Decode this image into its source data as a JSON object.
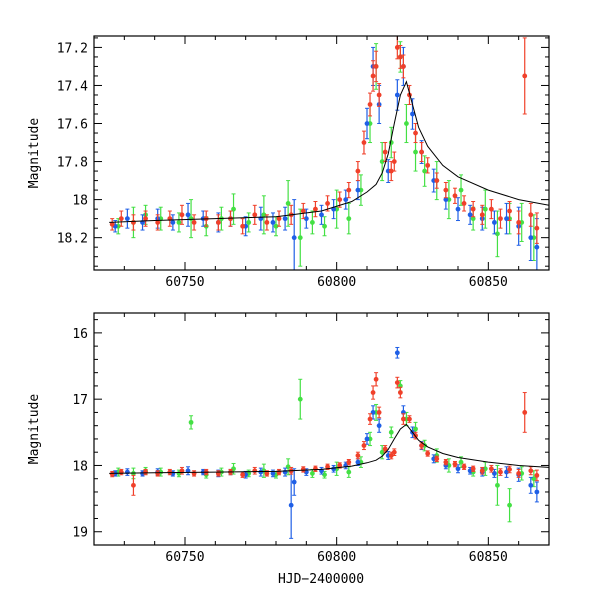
{
  "figure": {
    "xlabel": "HJD−2400000",
    "colors": {
      "green": "#44e044",
      "blue": "#1f5fe6",
      "red": "#f0402a",
      "model": "#000000"
    }
  },
  "chart_data": [
    {
      "type": "scatter",
      "panel": "top",
      "title": "",
      "xlabel": "",
      "ylabel": "Magnitude",
      "xlim": [
        60720,
        60870
      ],
      "ylim": [
        18.37,
        17.14
      ],
      "y_inverted": true,
      "xticks": [
        60750,
        60800,
        60850
      ],
      "xtick_labels": [
        "60750",
        "60800",
        "60850"
      ],
      "yticks": [
        17.2,
        17.4,
        17.6,
        17.8,
        18.0,
        18.2
      ],
      "ytick_labels": [
        "17.2",
        "17.4",
        "17.6",
        "17.8",
        "18",
        "18.2"
      ],
      "grid": false,
      "legend": "none",
      "series": [
        {
          "color": "#44e044",
          "x": [
            60728,
            60733,
            60737,
            60742,
            60748,
            60752,
            60757,
            60762,
            60766,
            60771,
            60776,
            60780,
            60784,
            60788,
            60792,
            60796,
            60800,
            60804,
            60808,
            60811,
            60813,
            60815,
            60818,
            60821,
            60823,
            60826,
            60829,
            60833,
            60837,
            60841,
            60845,
            60849,
            60853,
            60857,
            60861,
            60865
          ],
          "y": [
            18.14,
            18.12,
            18.08,
            18.1,
            18.12,
            18.1,
            18.14,
            18.1,
            18.05,
            18.12,
            18.08,
            18.14,
            18.02,
            18.2,
            18.12,
            18.14,
            18.05,
            18.1,
            17.95,
            17.6,
            17.3,
            17.8,
            17.7,
            17.25,
            17.6,
            17.75,
            17.85,
            17.9,
            18.0,
            17.95,
            18.1,
            18.05,
            18.18,
            18.1,
            18.12,
            18.2
          ],
          "err": [
            0.04,
            0.08,
            0.05,
            0.06,
            0.05,
            0.1,
            0.05,
            0.06,
            0.08,
            0.05,
            0.1,
            0.05,
            0.12,
            0.15,
            0.06,
            0.05,
            0.1,
            0.08,
            0.08,
            0.1,
            0.12,
            0.1,
            0.08,
            0.08,
            0.1,
            0.1,
            0.08,
            0.1,
            0.1,
            0.08,
            0.06,
            0.1,
            0.12,
            0.08,
            0.1,
            0.12
          ]
        },
        {
          "color": "#1f5fe6",
          "x": [
            60727,
            60731,
            60736,
            60741,
            60746,
            60751,
            60756,
            60761,
            60765,
            60770,
            60775,
            60779,
            60783,
            60786,
            60790,
            60795,
            60799,
            60803,
            60807,
            60810,
            60812,
            60814,
            60817,
            60820,
            60822,
            60825,
            60828,
            60832,
            60836,
            60840,
            60844,
            60848,
            60852,
            60856,
            60860,
            60864,
            60866
          ],
          "y": [
            18.14,
            18.1,
            18.12,
            18.1,
            18.12,
            18.08,
            18.1,
            18.12,
            18.1,
            18.14,
            18.1,
            18.12,
            18.1,
            18.2,
            18.1,
            18.08,
            18.05,
            18.0,
            17.95,
            17.6,
            17.3,
            17.5,
            17.85,
            17.45,
            17.3,
            17.55,
            17.75,
            17.9,
            18.0,
            18.05,
            18.08,
            18.1,
            18.12,
            18.1,
            18.14,
            18.2,
            18.25
          ],
          "err": [
            0.03,
            0.05,
            0.04,
            0.05,
            0.04,
            0.06,
            0.04,
            0.05,
            0.04,
            0.05,
            0.06,
            0.05,
            0.06,
            0.2,
            0.05,
            0.05,
            0.05,
            0.05,
            0.05,
            0.08,
            0.1,
            0.1,
            0.06,
            0.08,
            0.1,
            0.08,
            0.06,
            0.06,
            0.05,
            0.06,
            0.05,
            0.06,
            0.06,
            0.08,
            0.1,
            0.12,
            0.15
          ]
        },
        {
          "color": "#f0402a",
          "x": [
            60726,
            60729,
            60733,
            60737,
            60741,
            60745,
            60749,
            60753,
            60757,
            60761,
            60765,
            60769,
            60773,
            60777,
            60781,
            60785,
            60789,
            60793,
            60797,
            60801,
            60804,
            60807,
            60809,
            60811,
            60812,
            60813,
            60814,
            60816,
            60818,
            60819,
            60820,
            60821,
            60822,
            60824,
            60826,
            60828,
            60830,
            60833,
            60836,
            60839,
            60842,
            60845,
            60848,
            60851,
            60854,
            60857,
            60860,
            60862,
            60864,
            60866
          ],
          "y": [
            18.13,
            18.1,
            18.12,
            18.1,
            18.12,
            18.1,
            18.08,
            18.12,
            18.1,
            18.12,
            18.1,
            18.14,
            18.08,
            18.12,
            18.1,
            18.08,
            18.06,
            18.05,
            18.02,
            18.0,
            17.95,
            17.85,
            17.7,
            17.5,
            17.35,
            17.3,
            17.45,
            17.75,
            17.85,
            17.8,
            17.2,
            17.25,
            17.3,
            17.45,
            17.65,
            17.75,
            17.82,
            17.9,
            17.95,
            17.98,
            18.02,
            18.05,
            18.08,
            18.05,
            18.1,
            18.06,
            18.12,
            17.35,
            18.08,
            18.15
          ],
          "err": [
            0.03,
            0.04,
            0.04,
            0.04,
            0.04,
            0.04,
            0.05,
            0.04,
            0.04,
            0.04,
            0.04,
            0.04,
            0.05,
            0.04,
            0.04,
            0.05,
            0.04,
            0.04,
            0.04,
            0.04,
            0.04,
            0.05,
            0.06,
            0.06,
            0.08,
            0.08,
            0.06,
            0.05,
            0.05,
            0.05,
            0.06,
            0.06,
            0.06,
            0.05,
            0.05,
            0.05,
            0.04,
            0.04,
            0.04,
            0.04,
            0.04,
            0.04,
            0.05,
            0.05,
            0.05,
            0.05,
            0.06,
            0.2,
            0.06,
            0.08
          ]
        }
      ],
      "model": {
        "x": [
          60725,
          60740,
          60760,
          60780,
          60795,
          60805,
          60810,
          60813,
          60815,
          60817,
          60819,
          60821,
          60823,
          60825,
          60827,
          60830,
          60835,
          60840,
          60850,
          60860,
          60870
        ],
        "y": [
          18.12,
          18.11,
          18.1,
          18.09,
          18.06,
          18.01,
          17.96,
          17.92,
          17.86,
          17.76,
          17.6,
          17.45,
          17.38,
          17.5,
          17.62,
          17.72,
          17.82,
          17.88,
          17.95,
          18.0,
          18.03
        ]
      }
    },
    {
      "type": "scatter",
      "panel": "bottom",
      "title": "",
      "xlabel": "HJD−2400000",
      "ylabel": "Magnitude",
      "xlim": [
        60720,
        60870
      ],
      "ylim": [
        19.2,
        15.7
      ],
      "y_inverted": true,
      "xticks": [
        60750,
        60800,
        60850
      ],
      "xtick_labels": [
        "60750",
        "60800",
        "60850"
      ],
      "yticks": [
        16,
        17,
        18,
        19
      ],
      "ytick_labels": [
        "16",
        "17",
        "18",
        "19"
      ],
      "grid": false,
      "legend": "none",
      "series": [
        {
          "color": "#44e044",
          "x": [
            60728,
            60733,
            60737,
            60742,
            60748,
            60752,
            60757,
            60762,
            60766,
            60771,
            60776,
            60780,
            60784,
            60788,
            60792,
            60796,
            60800,
            60804,
            60808,
            60811,
            60813,
            60815,
            60818,
            60821,
            60823,
            60826,
            60829,
            60833,
            60837,
            60841,
            60845,
            60849,
            60853,
            60857,
            60861,
            60865
          ],
          "y": [
            18.1,
            18.12,
            18.08,
            18.1,
            18.12,
            17.35,
            18.14,
            18.1,
            18.05,
            18.12,
            18.08,
            18.14,
            18.02,
            17.0,
            18.12,
            18.14,
            18.05,
            18.1,
            17.95,
            17.6,
            17.2,
            17.8,
            17.5,
            16.8,
            17.3,
            17.45,
            17.7,
            17.85,
            18.0,
            17.95,
            18.1,
            18.05,
            18.3,
            18.6,
            18.12,
            18.2
          ],
          "err": [
            0.06,
            0.08,
            0.05,
            0.06,
            0.05,
            0.1,
            0.05,
            0.06,
            0.08,
            0.05,
            0.1,
            0.05,
            0.12,
            0.3,
            0.06,
            0.05,
            0.1,
            0.08,
            0.08,
            0.1,
            0.12,
            0.1,
            0.08,
            0.08,
            0.1,
            0.1,
            0.08,
            0.1,
            0.1,
            0.08,
            0.06,
            0.1,
            0.3,
            0.25,
            0.1,
            0.12
          ]
        },
        {
          "color": "#1f5fe6",
          "x": [
            60727,
            60731,
            60736,
            60741,
            60746,
            60751,
            60756,
            60761,
            60765,
            60770,
            60775,
            60779,
            60783,
            60785,
            60786,
            60790,
            60795,
            60799,
            60803,
            60807,
            60810,
            60812,
            60814,
            60817,
            60820,
            60822,
            60825,
            60828,
            60832,
            60836,
            60840,
            60844,
            60848,
            60852,
            60856,
            60860,
            60864,
            60866
          ],
          "y": [
            18.12,
            18.1,
            18.12,
            18.1,
            18.12,
            18.08,
            18.1,
            18.12,
            18.1,
            18.14,
            18.1,
            18.12,
            18.1,
            18.6,
            18.25,
            18.1,
            18.08,
            18.05,
            18.0,
            17.95,
            17.6,
            17.2,
            17.4,
            17.85,
            16.3,
            17.2,
            17.5,
            17.7,
            17.9,
            18.0,
            18.05,
            18.08,
            18.1,
            18.12,
            18.1,
            18.14,
            18.3,
            18.4
          ],
          "err": [
            0.04,
            0.05,
            0.04,
            0.05,
            0.04,
            0.06,
            0.04,
            0.05,
            0.04,
            0.05,
            0.06,
            0.05,
            0.06,
            0.5,
            0.2,
            0.05,
            0.05,
            0.05,
            0.05,
            0.05,
            0.08,
            0.1,
            0.1,
            0.06,
            0.08,
            0.1,
            0.08,
            0.06,
            0.06,
            0.05,
            0.06,
            0.05,
            0.06,
            0.06,
            0.08,
            0.1,
            0.12,
            0.15
          ]
        },
        {
          "color": "#f0402a",
          "x": [
            60726,
            60729,
            60733,
            60737,
            60741,
            60745,
            60749,
            60753,
            60757,
            60761,
            60765,
            60769,
            60773,
            60777,
            60781,
            60785,
            60789,
            60793,
            60797,
            60801,
            60804,
            60807,
            60809,
            60811,
            60812,
            60813,
            60814,
            60816,
            60818,
            60819,
            60820,
            60821,
            60822,
            60824,
            60826,
            60828,
            60830,
            60833,
            60836,
            60839,
            60842,
            60845,
            60848,
            60851,
            60854,
            60857,
            60860,
            60862,
            60864,
            60866
          ],
          "y": [
            18.13,
            18.1,
            18.3,
            18.1,
            18.12,
            18.1,
            18.08,
            18.12,
            18.1,
            18.12,
            18.1,
            18.14,
            18.08,
            18.12,
            18.1,
            18.08,
            18.06,
            18.05,
            18.02,
            18.0,
            17.95,
            17.85,
            17.7,
            17.3,
            16.9,
            16.7,
            17.2,
            17.75,
            17.85,
            17.8,
            16.75,
            16.9,
            17.3,
            17.3,
            17.55,
            17.7,
            17.82,
            17.9,
            17.95,
            17.98,
            18.02,
            18.05,
            18.08,
            18.05,
            18.1,
            18.06,
            18.12,
            17.2,
            18.08,
            18.15
          ],
          "err": [
            0.04,
            0.04,
            0.15,
            0.04,
            0.04,
            0.04,
            0.05,
            0.04,
            0.04,
            0.04,
            0.04,
            0.04,
            0.05,
            0.04,
            0.04,
            0.05,
            0.04,
            0.04,
            0.04,
            0.04,
            0.04,
            0.05,
            0.06,
            0.08,
            0.1,
            0.1,
            0.08,
            0.05,
            0.05,
            0.05,
            0.08,
            0.08,
            0.08,
            0.05,
            0.05,
            0.05,
            0.04,
            0.04,
            0.04,
            0.04,
            0.04,
            0.04,
            0.05,
            0.05,
            0.05,
            0.05,
            0.06,
            0.3,
            0.06,
            0.08
          ]
        }
      ],
      "model": {
        "x": [
          60725,
          60740,
          60760,
          60780,
          60795,
          60805,
          60810,
          60813,
          60815,
          60817,
          60819,
          60821,
          60823,
          60825,
          60827,
          60830,
          60835,
          60840,
          60850,
          60860,
          60870
        ],
        "y": [
          18.12,
          18.11,
          18.1,
          18.09,
          18.06,
          18.01,
          17.96,
          17.92,
          17.86,
          17.76,
          17.6,
          17.45,
          17.38,
          17.5,
          17.62,
          17.72,
          17.82,
          17.88,
          17.95,
          18.0,
          18.03
        ]
      }
    }
  ]
}
